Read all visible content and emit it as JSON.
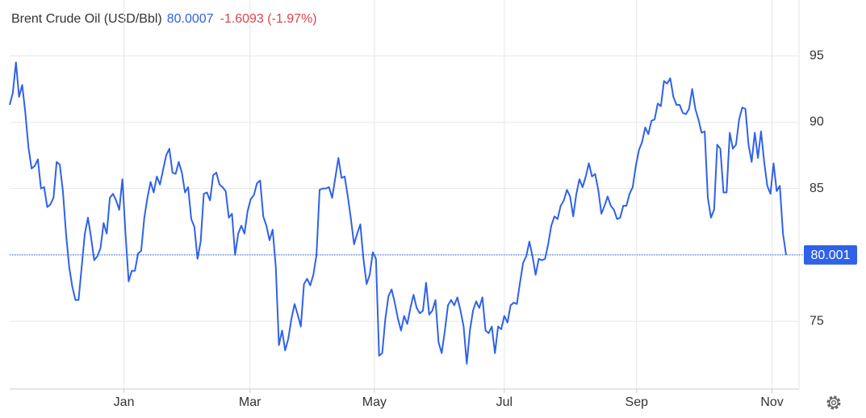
{
  "header": {
    "name": "Brent Crude Oil (USD/Bbl)",
    "price": "80.0007",
    "change": "-1.6093 (-1.97%)"
  },
  "chart_data": {
    "type": "line",
    "color": "#2f62e8",
    "grid": true,
    "ylim": [
      69.9,
      99.2
    ],
    "yticks": [
      75,
      80,
      85,
      90,
      95
    ],
    "xlim": [
      0,
      248
    ],
    "xticks": [
      {
        "value": 36.5,
        "label": "Jan"
      },
      {
        "value": 76.75,
        "label": "Mar"
      },
      {
        "value": 116.5,
        "label": "May"
      },
      {
        "value": 158,
        "label": "Jul"
      },
      {
        "value": 200.25,
        "label": "Sep"
      },
      {
        "value": 243.5,
        "label": "Nov"
      }
    ],
    "last_price": 80.001,
    "values": [
      91.3,
      92.2,
      94.5,
      91.9,
      92.8,
      90.7,
      88.1,
      86.5,
      86.7,
      87.2,
      85.0,
      85.1,
      83.6,
      83.8,
      84.3,
      87.0,
      86.8,
      84.8,
      81.6,
      79.1,
      77.6,
      76.6,
      76.6,
      79.1,
      81.6,
      82.8,
      81.3,
      79.6,
      79.9,
      80.5,
      82.4,
      81.6,
      84.3,
      84.6,
      84.1,
      83.4,
      85.7,
      81.6,
      78.0,
      78.8,
      78.8,
      80.1,
      80.3,
      82.8,
      84.3,
      85.5,
      84.7,
      85.9,
      85.3,
      86.4,
      87.5,
      88.0,
      86.2,
      86.1,
      87.0,
      86.2,
      84.7,
      85.1,
      82.7,
      82.1,
      79.7,
      81.0,
      84.6,
      84.7,
      84.1,
      86.0,
      86.2,
      85.3,
      85.1,
      84.8,
      82.8,
      83.1,
      80.0,
      81.6,
      82.2,
      81.6,
      83.3,
      84.2,
      84.5,
      85.4,
      85.6,
      82.9,
      82.2,
      81.1,
      81.9,
      79.1,
      73.2,
      74.3,
      72.8,
      73.7,
      75.2,
      76.3,
      75.5,
      74.6,
      77.8,
      78.2,
      77.7,
      78.5,
      80.0,
      84.9,
      85.0,
      85.0,
      85.1,
      84.3,
      85.8,
      87.3,
      85.8,
      85.9,
      84.4,
      82.7,
      80.8,
      81.6,
      82.3,
      79.7,
      77.8,
      78.5,
      80.2,
      79.7,
      72.4,
      72.6,
      75.2,
      76.9,
      77.4,
      76.4,
      75.2,
      74.3,
      75.4,
      74.8,
      76.0,
      77.0,
      76.0,
      75.6,
      75.8,
      77.9,
      75.5,
      75.8,
      76.6,
      73.4,
      72.6,
      74.3,
      76.2,
      76.6,
      76.2,
      76.8,
      75.8,
      74.6,
      71.8,
      74.3,
      75.8,
      76.5,
      76.0,
      76.8,
      74.3,
      74.1,
      74.6,
      72.6,
      74.6,
      74.4,
      75.4,
      74.9,
      76.2,
      76.4,
      76.3,
      77.9,
      79.4,
      79.9,
      81.0,
      79.9,
      78.5,
      79.7,
      79.6,
      79.7,
      80.8,
      82.2,
      82.9,
      82.7,
      83.7,
      84.1,
      84.9,
      84.4,
      82.9,
      84.6,
      85.7,
      85.1,
      85.9,
      86.9,
      85.9,
      86.1,
      84.9,
      83.1,
      83.7,
      84.4,
      83.7,
      83.4,
      82.7,
      82.8,
      83.7,
      83.7,
      84.6,
      85.1,
      86.7,
      87.9,
      88.5,
      89.6,
      89.1,
      90.1,
      90.2,
      91.4,
      91.2,
      93.1,
      92.9,
      93.3,
      91.9,
      91.3,
      91.3,
      90.7,
      90.6,
      91.0,
      92.5,
      91.0,
      90.2,
      89.2,
      89.3,
      84.3,
      82.8,
      83.4,
      88.3,
      88.0,
      84.7,
      84.7,
      89.2,
      88.0,
      88.3,
      90.2,
      91.1,
      91.0,
      88.3,
      87.0,
      89.2,
      87.3,
      89.3,
      87.0,
      85.2,
      84.6,
      86.9,
      84.8,
      85.2,
      81.6,
      80.0
    ]
  }
}
